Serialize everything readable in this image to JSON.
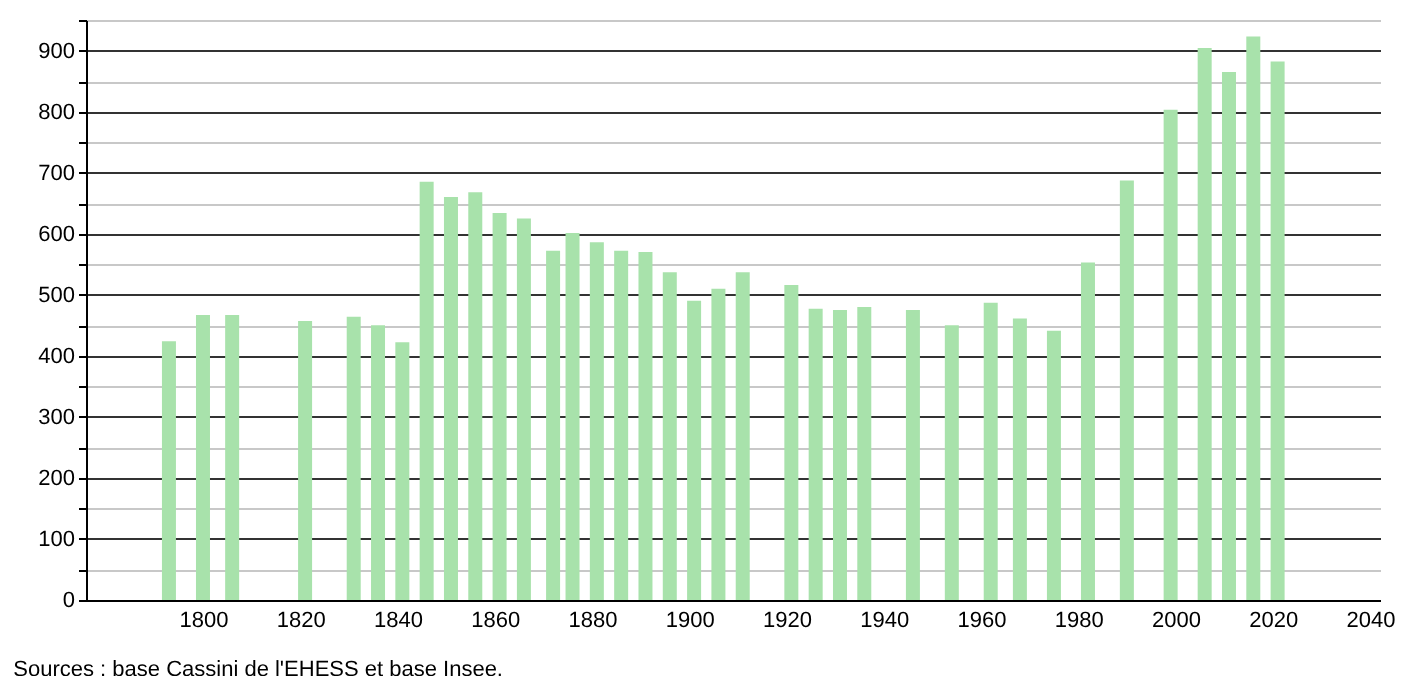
{
  "chart_data": {
    "type": "bar",
    "color": "#a8e2ab",
    "x": [
      1793,
      1800,
      1806,
      1821,
      1831,
      1836,
      1841,
      1846,
      1851,
      1856,
      1861,
      1866,
      1872,
      1876,
      1881,
      1886,
      1891,
      1896,
      1901,
      1906,
      1911,
      1921,
      1926,
      1931,
      1936,
      1946,
      1954,
      1962,
      1968,
      1975,
      1982,
      1990,
      1999,
      2006,
      2011,
      2016,
      2021
    ],
    "values": [
      424,
      467,
      467,
      457,
      464,
      450,
      422,
      685,
      660,
      668,
      634,
      625,
      572,
      601,
      586,
      572,
      570,
      537,
      490,
      510,
      537,
      516,
      477,
      475,
      480,
      475,
      450,
      487,
      461,
      441,
      553,
      687,
      803,
      904,
      865,
      923,
      882
    ],
    "xlim": [
      1778,
      2040
    ],
    "xticks": [
      1800,
      1820,
      1840,
      1860,
      1880,
      1900,
      1920,
      1940,
      1960,
      1980,
      2000,
      2020,
      2040
    ],
    "ylim": [
      0,
      950
    ],
    "yticks": [
      0,
      {
        "value": 50,
        "label": null
      },
      100,
      {
        "value": 150,
        "label": null
      },
      200,
      {
        "value": 250,
        "label": null
      },
      300,
      {
        "value": 350,
        "label": null
      },
      400,
      {
        "value": 450,
        "label": null
      },
      500,
      {
        "value": 550,
        "label": null
      },
      600,
      {
        "value": 650,
        "label": null
      },
      700,
      {
        "value": 750,
        "label": null
      },
      800,
      {
        "value": 850,
        "label": null
      },
      900,
      {
        "value": 950,
        "label": null
      }
    ],
    "grid": true,
    "annotations": [
      "Sources : base Cassini de l'EHESS et base Insee."
    ]
  }
}
